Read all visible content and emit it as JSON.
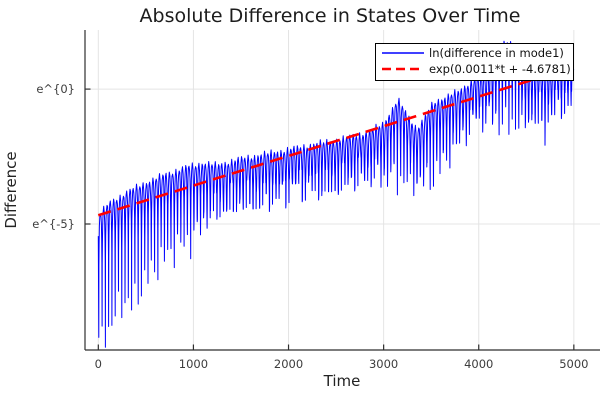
{
  "chart_data": {
    "type": "line",
    "title": "Absolute Difference in States Over Time",
    "xlabel": "Time",
    "ylabel": "Difference",
    "grid": true,
    "legend_position": "top-right",
    "x_ticks": [
      0,
      1000,
      2000,
      3000,
      4000,
      5000
    ],
    "x_tick_labels": [
      "0",
      "1000",
      "2000",
      "3000",
      "4000",
      "5000"
    ],
    "y_ticks_ln": [
      0,
      -5
    ],
    "y_tick_labels": [
      "e^{0}",
      "e^{-5}"
    ],
    "y_scale": "log (natural), labels shown as e^{n}",
    "x_range": [
      -140,
      5275
    ],
    "ln_range": [
      -9.67,
      2.19
    ],
    "palette": {
      "series1": "#0000ff",
      "series2": "#ff0000",
      "grid": "#e4e4e4",
      "axis": "#2f2f2f",
      "background": "#ffffff",
      "legend_border": "#000000"
    },
    "series": [
      {
        "name": "ln(difference in mode1)",
        "color": "#0000ff",
        "style": "solid",
        "width": 1,
        "t_start": 0,
        "t_end": 5000,
        "description": "rapidly oscillating absolute difference on log scale; narrow downward spikes at each oscillation zero-crossing; envelope grows over time",
        "oscillation": {
          "spike_period": 34.5,
          "phase": 5,
          "top_envelope_t_ln": [
            [
              0,
              -4.65
            ],
            [
              120,
              -4.2
            ],
            [
              300,
              -3.8
            ],
            [
              500,
              -3.45
            ],
            [
              700,
              -3.15
            ],
            [
              900,
              -2.9
            ],
            [
              1100,
              -2.72
            ],
            [
              1250,
              -2.8
            ],
            [
              1450,
              -2.6
            ],
            [
              1700,
              -2.42
            ],
            [
              2000,
              -2.22
            ],
            [
              2300,
              -2.0
            ],
            [
              2600,
              -1.8
            ],
            [
              2850,
              -1.55
            ],
            [
              3000,
              -1.25
            ],
            [
              3060,
              -0.9
            ],
            [
              3150,
              -0.37
            ],
            [
              3260,
              -1.0
            ],
            [
              3350,
              -1.45
            ],
            [
              3420,
              -1.1
            ],
            [
              3520,
              -0.5
            ],
            [
              3650,
              -0.27
            ],
            [
              3800,
              -0.05
            ],
            [
              3950,
              0.4
            ],
            [
              4080,
              0.6
            ],
            [
              4180,
              1.1
            ],
            [
              4280,
              1.8
            ],
            [
              4400,
              1.5
            ],
            [
              4500,
              0.8
            ],
            [
              4650,
              0.7
            ],
            [
              4800,
              0.8
            ],
            [
              4950,
              1.05
            ],
            [
              5000,
              1.0
            ]
          ],
          "bottom_envelope_t_ln": [
            [
              0,
              -9.45
            ],
            [
              90,
              -9.1
            ],
            [
              160,
              -8.5
            ],
            [
              260,
              -7.8
            ],
            [
              360,
              -8.0
            ],
            [
              470,
              -7.2
            ],
            [
              620,
              -6.5
            ],
            [
              800,
              -5.9
            ],
            [
              1000,
              -5.55
            ],
            [
              1150,
              -4.6
            ],
            [
              1300,
              -4.3
            ],
            [
              1500,
              -4.1
            ],
            [
              1700,
              -4.05
            ],
            [
              1900,
              -3.8
            ],
            [
              2100,
              -3.45
            ],
            [
              2300,
              -3.6
            ],
            [
              2500,
              -3.5
            ],
            [
              2700,
              -3.2
            ],
            [
              2900,
              -3.05
            ],
            [
              3100,
              -3.3
            ],
            [
              3300,
              -3.4
            ],
            [
              3500,
              -3.35
            ],
            [
              3650,
              -2.6
            ],
            [
              3800,
              -1.7
            ],
            [
              3950,
              -1.0
            ],
            [
              4100,
              -0.85
            ],
            [
              4250,
              -1.3
            ],
            [
              4400,
              -1.25
            ],
            [
              4550,
              -1.0
            ],
            [
              4650,
              -0.75
            ],
            [
              4695,
              -1.75
            ],
            [
              4740,
              -0.6
            ],
            [
              4900,
              -0.45
            ],
            [
              5000,
              -0.3
            ]
          ],
          "top_jitter": 0.07,
          "bottom_jitter": 0.75
        }
      },
      {
        "name": "exp(0.0011*t + -4.6781)",
        "color": "#ff0000",
        "style": "dashed",
        "width": 2.6,
        "slope": 0.0011,
        "intercept": -4.6781,
        "t_start": 0,
        "t_end": 5000
      }
    ]
  }
}
